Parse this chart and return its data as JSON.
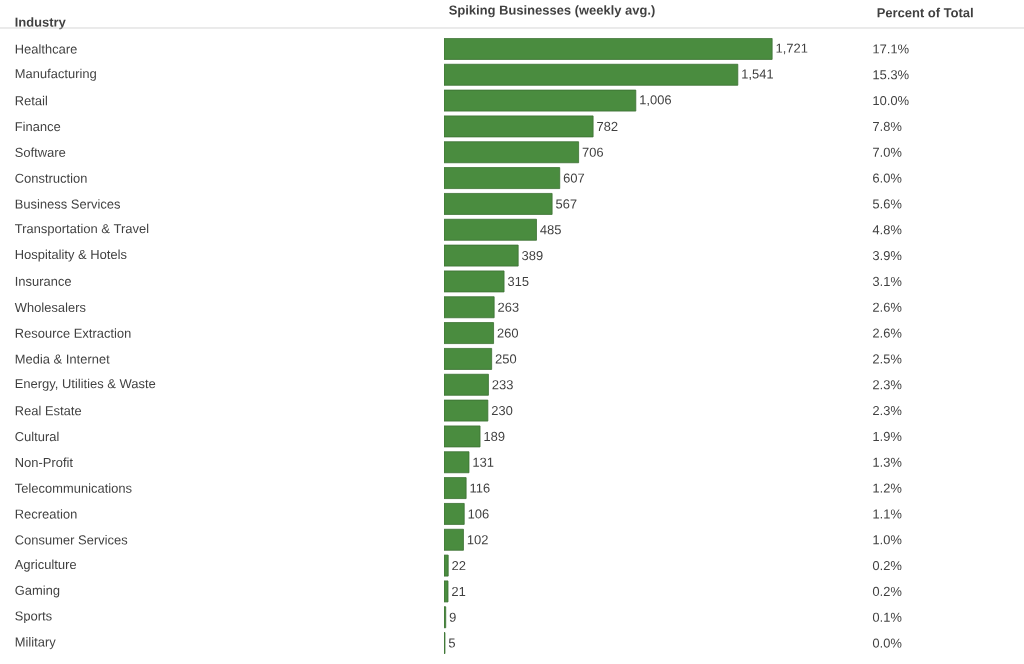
{
  "chart_data": [
    {
      "type": "bar",
      "orientation": "horizontal",
      "title": "Spiking Businesses (weekly avg.)",
      "ylabel": "Industry",
      "color": "#4a8c3f",
      "categories": [
        "Healthcare",
        "Manufacturing",
        "Retail",
        "Finance",
        "Software",
        "Construction",
        "Business Services",
        "Transportation & Travel",
        "Hospitality & Hotels",
        "Insurance",
        "Wholesalers",
        "Resource Extraction",
        "Media & Internet",
        "Energy, Utilities & Waste",
        "Real Estate",
        "Cultural",
        "Non-Profit",
        "Telecommunications",
        "Recreation",
        "Consumer Services",
        "Agriculture",
        "Gaming",
        "Sports",
        "Military"
      ],
      "values": [
        1721,
        1541,
        1006,
        782,
        706,
        607,
        567,
        485,
        389,
        315,
        263,
        260,
        250,
        233,
        230,
        189,
        131,
        116,
        106,
        102,
        22,
        21,
        9,
        5
      ],
      "value_labels": [
        "1,721",
        "1,541",
        "1,006",
        "782",
        "706",
        "607",
        "567",
        "485",
        "389",
        "315",
        "263",
        "260",
        "250",
        "233",
        "230",
        "189",
        "131",
        "116",
        "106",
        "102",
        "22",
        "21",
        "9",
        "5"
      ]
    },
    {
      "type": "other",
      "title": "Percent of Total",
      "value_labels": [
        "17.1%",
        "15.3%",
        "10.0%",
        "7.8%",
        "7.0%",
        "6.0%",
        "5.6%",
        "4.8%",
        "3.9%",
        "3.1%",
        "2.6%",
        "2.6%",
        "2.5%",
        "2.3%",
        "2.3%",
        "1.9%",
        "1.3%",
        "1.2%",
        "1.1%",
        "1.0%",
        "0.2%",
        "0.2%",
        "0.1%",
        "0.0%"
      ]
    }
  ]
}
